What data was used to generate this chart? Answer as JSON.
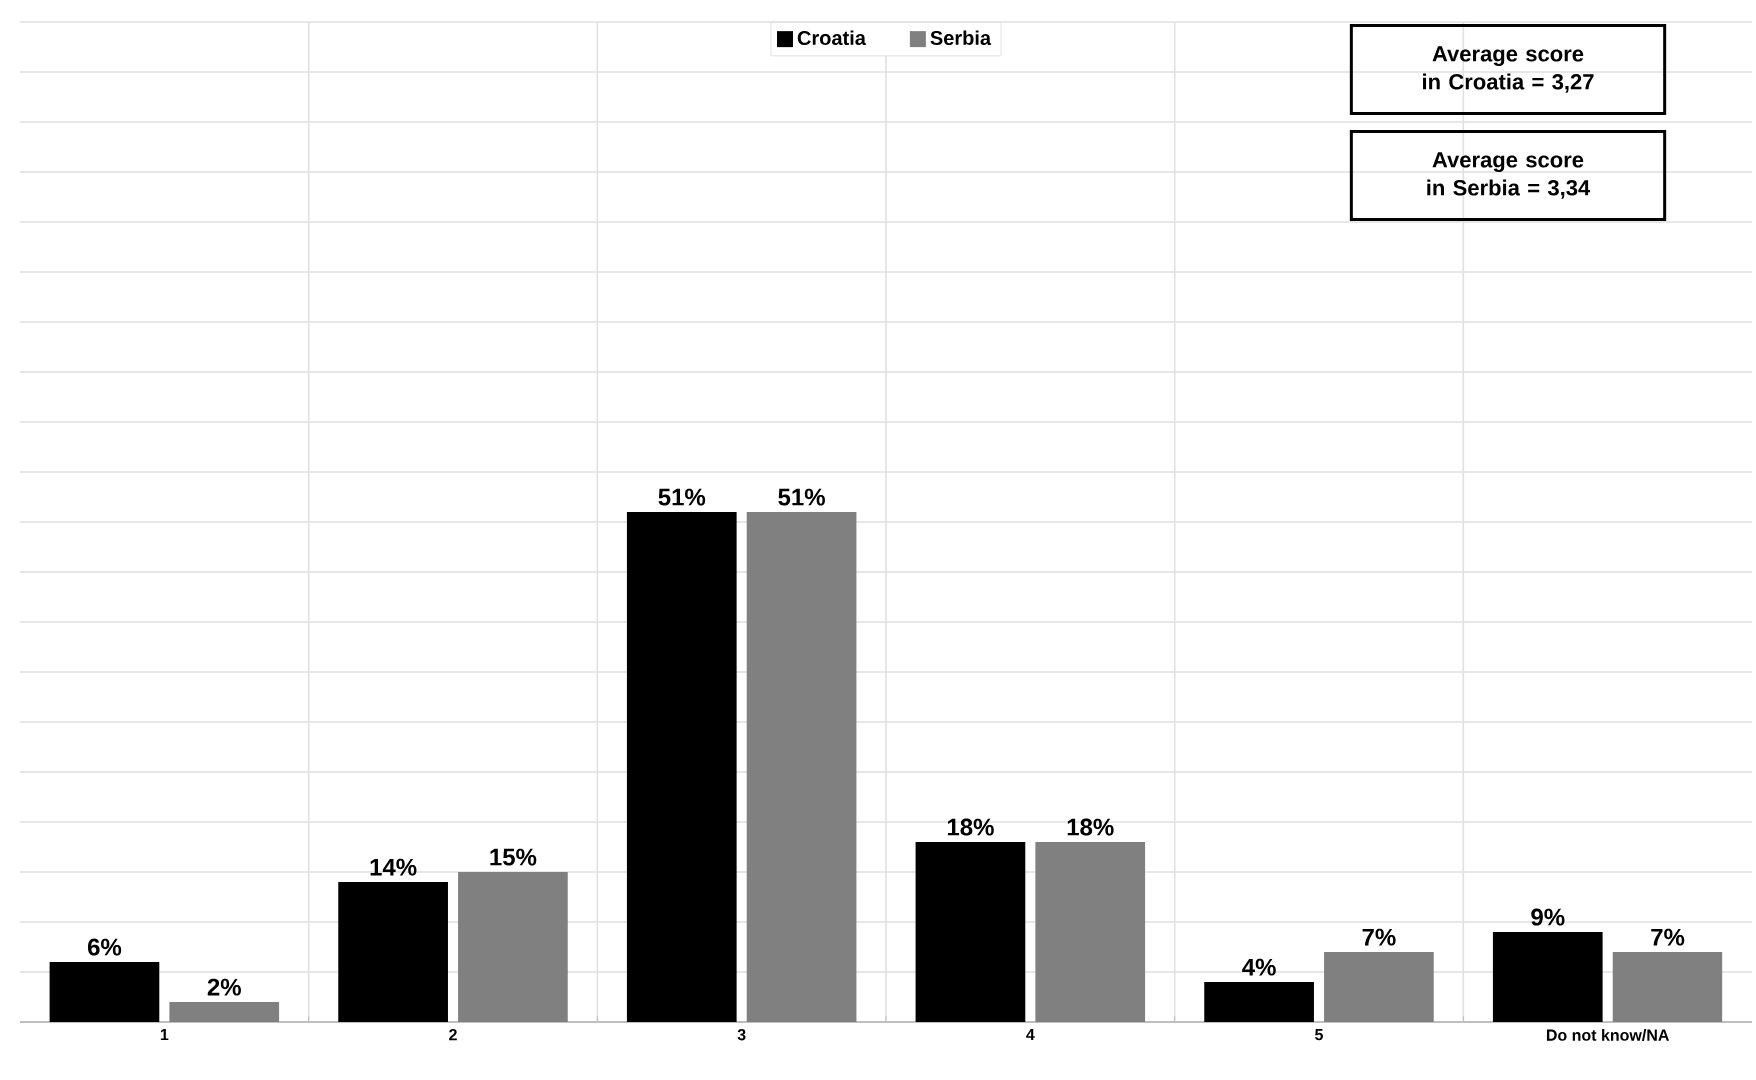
{
  "chart_data": {
    "type": "bar",
    "categories": [
      "1",
      "2",
      "3",
      "4",
      "5",
      "Do not know/NA"
    ],
    "series": [
      {
        "name": "Croatia",
        "color": "#000000",
        "values": [
          6,
          14,
          51,
          18,
          4,
          9
        ],
        "value_labels": [
          "6%",
          "14%",
          "51%",
          "18%",
          "4%",
          "9%"
        ]
      },
      {
        "name": "Serbia",
        "color": "#808080",
        "values": [
          2,
          15,
          51,
          18,
          7,
          7
        ],
        "value_labels": [
          "2%",
          "15%",
          "51%",
          "18%",
          "7%",
          "7%"
        ]
      }
    ],
    "ylim": [
      0,
      100
    ],
    "tick_labels": "x",
    "grid": true,
    "legend": "top",
    "annotations": [
      "Average score in Croatia = 3,27",
      "Average score in Serbia = 3,34"
    ]
  }
}
